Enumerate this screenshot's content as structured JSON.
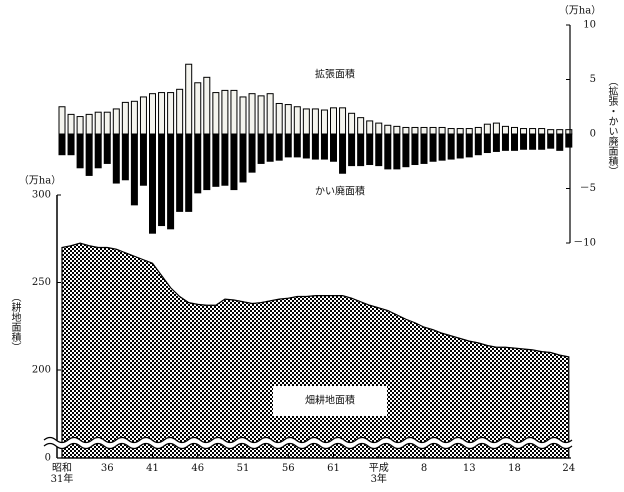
{
  "chart_data": {
    "type": "bar",
    "categories": [
      "昭和\n31年",
      null,
      null,
      null,
      null,
      "36",
      null,
      null,
      null,
      null,
      "41",
      null,
      null,
      null,
      null,
      "46",
      null,
      null,
      null,
      null,
      "51",
      null,
      null,
      null,
      null,
      "56",
      null,
      null,
      null,
      null,
      "61",
      null,
      null,
      null,
      null,
      "平成\n3年",
      null,
      null,
      null,
      null,
      "8",
      null,
      null,
      null,
      null,
      "13",
      null,
      null,
      null,
      null,
      "18",
      null,
      null,
      null,
      null,
      null,
      "24"
    ],
    "series": [
      {
        "name": "拡張面積",
        "type": "bar",
        "axis": "y2",
        "color": "#f4f4ee",
        "edgecolor": "#000000",
        "values": [
          2.5,
          1.8,
          1.6,
          1.8,
          2.0,
          2.0,
          2.3,
          2.9,
          3.0,
          3.4,
          3.7,
          3.8,
          3.8,
          4.1,
          6.4,
          4.7,
          5.2,
          3.8,
          4.0,
          4.0,
          3.4,
          3.7,
          3.5,
          3.7,
          2.8,
          2.7,
          2.5,
          2.3,
          2.3,
          2.2,
          2.4,
          2.4,
          1.9,
          1.5,
          1.2,
          1.0,
          0.8,
          0.7,
          0.6,
          0.6,
          0.6,
          0.6,
          0.6,
          0.5,
          0.5,
          0.5,
          0.6,
          0.9,
          1.0,
          0.7,
          0.6,
          0.5,
          0.5,
          0.5,
          0.4,
          0.4,
          0.4
        ]
      },
      {
        "name": "かい廃面積",
        "type": "bar",
        "axis": "y2",
        "color": "#000000",
        "edgecolor": "#000000",
        "values": [
          -1.9,
          -1.9,
          -3.1,
          -3.8,
          -3.1,
          -2.7,
          -4.5,
          -4.2,
          -6.5,
          -4.7,
          -9.1,
          -8.4,
          -8.7,
          -7.1,
          -7.1,
          -5.4,
          -5.1,
          -4.8,
          -4.7,
          -5.1,
          -4.4,
          -3.5,
          -2.7,
          -2.5,
          -2.4,
          -2.1,
          -2.1,
          -2.2,
          -2.3,
          -2.3,
          -2.5,
          -3.6,
          -2.9,
          -2.9,
          -2.8,
          -2.9,
          -3.2,
          -3.2,
          -3.0,
          -2.8,
          -2.7,
          -2.5,
          -2.4,
          -2.3,
          -2.2,
          -2.1,
          -1.9,
          -1.7,
          -1.6,
          -1.5,
          -1.5,
          -1.4,
          -1.4,
          -1.4,
          -1.3,
          -1.5,
          -1.2
        ]
      },
      {
        "name": "畑耕地面積",
        "type": "area",
        "axis": "y",
        "color": "#000000",
        "pattern": "checker",
        "values": [
          270,
          271,
          272.5,
          271,
          270,
          270,
          269,
          267,
          265,
          263,
          261,
          254,
          247,
          242,
          238.5,
          237.5,
          237,
          237,
          240.5,
          240,
          239,
          238,
          238.5,
          239.5,
          240.5,
          241,
          242,
          242,
          242.5,
          242.5,
          242.5,
          242.5,
          241,
          239,
          237,
          235.5,
          234,
          231.5,
          229,
          227,
          224.5,
          223,
          221,
          219.5,
          218,
          216.5,
          215.5,
          214,
          213,
          213,
          212.5,
          212,
          211.5,
          210.5,
          210,
          208.5,
          207.5
        ]
      }
    ],
    "yunit": "（万ha）",
    "ylabel": "（耕地面積）",
    "ylim": [
      0,
      300
    ],
    "yticks": [
      0,
      200,
      250,
      300
    ],
    "y_axis_break": true,
    "y2unit": "（万ha）",
    "y2label": "（拡張・かい廃面積）",
    "y2lim": [
      -10,
      10
    ],
    "y2ticks": [
      10,
      5,
      0,
      {
        "value": -5,
        "label": "－5"
      },
      {
        "value": -10,
        "label": "－10"
      }
    ]
  }
}
